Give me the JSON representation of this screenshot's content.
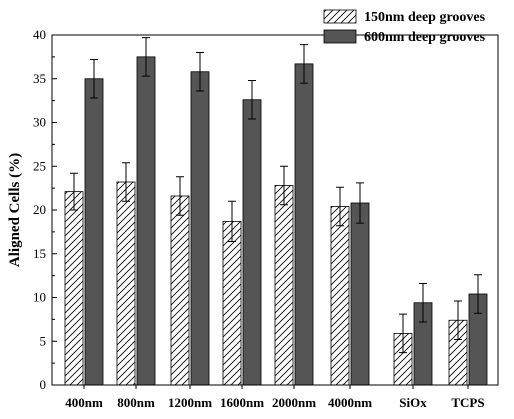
{
  "chart_data": {
    "type": "bar",
    "categories": [
      "400nm",
      "800nm",
      "1200nm",
      "1600nm",
      "2000nm",
      "4000nm",
      "SiOx",
      "TCPS"
    ],
    "series": [
      {
        "name": "150nm deep grooves",
        "pattern": "hatched",
        "values": [
          22.1,
          23.2,
          21.6,
          18.7,
          22.8,
          20.4,
          5.9,
          7.4
        ],
        "errors": [
          2.1,
          2.2,
          2.2,
          2.3,
          2.2,
          2.2,
          2.2,
          2.2
        ]
      },
      {
        "name": "600nm deep grooves",
        "pattern": "solid",
        "color": "#555555",
        "values": [
          35.0,
          37.5,
          35.8,
          32.6,
          36.7,
          20.8,
          9.4,
          10.4
        ],
        "errors": [
          2.2,
          2.2,
          2.2,
          2.2,
          2.2,
          2.3,
          2.2,
          2.2
        ]
      }
    ],
    "xlabel": "",
    "ylabel": "Aligned Cells (%)",
    "ylim": [
      0,
      40
    ],
    "yticks": [
      0,
      5,
      10,
      15,
      20,
      25,
      30,
      35,
      40
    ],
    "legend": "top-right",
    "grid": false
  }
}
